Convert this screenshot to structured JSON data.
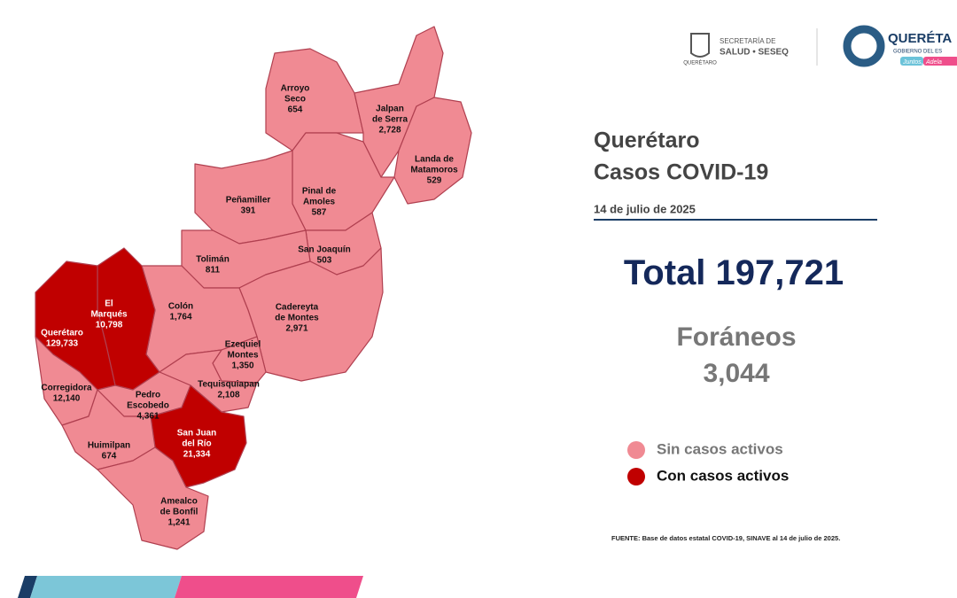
{
  "header": {
    "agency": [
      "SECRETARÍA DE",
      "SALUD • SESEQ"
    ],
    "crest_text": "QUERÉTARO",
    "brand": "QUERÉTA",
    "brand_sub": "GOBIERNO DEL ES",
    "tagline": [
      "Juntos,",
      "Adela"
    ]
  },
  "title": [
    "Querétaro",
    "Casos COVID-19"
  ],
  "date": "14 de julio de 2025",
  "total": {
    "label": "Total",
    "value": "197,721"
  },
  "foreign": {
    "label": "Foráneos",
    "value": "3,044"
  },
  "legend": [
    {
      "label": "Sin casos activos",
      "color": "#f08a93"
    },
    {
      "label": "Con casos activos",
      "color": "#c00000"
    }
  ],
  "municipalities": [
    {
      "name": [
        "Arroyo",
        "Seco"
      ],
      "cases": "654",
      "active": false
    },
    {
      "name": [
        "Jalpan",
        "de Serra"
      ],
      "cases": "2,728",
      "active": false
    },
    {
      "name": [
        "Landa de",
        "Matamoros"
      ],
      "cases": "529",
      "active": false
    },
    {
      "name": [
        "Pinal de",
        "Amoles"
      ],
      "cases": "587",
      "active": false
    },
    {
      "name": [
        "Peñamiller"
      ],
      "cases": "391",
      "active": false
    },
    {
      "name": [
        "San Joaquín"
      ],
      "cases": "503",
      "active": false
    },
    {
      "name": [
        "Tolimán"
      ],
      "cases": "811",
      "active": false
    },
    {
      "name": [
        "Cadereyta",
        "de Montes"
      ],
      "cases": "2,971",
      "active": false
    },
    {
      "name": [
        "Colón"
      ],
      "cases": "1,764",
      "active": false
    },
    {
      "name": [
        "Ezequiel",
        "Montes"
      ],
      "cases": "1,350",
      "active": false
    },
    {
      "name": [
        "Tequisquiapan"
      ],
      "cases": "2,108",
      "active": false
    },
    {
      "name": [
        "El",
        "Marqués"
      ],
      "cases": "10,798",
      "active": true
    },
    {
      "name": [
        "Querétaro"
      ],
      "cases": "129,733",
      "active": true
    },
    {
      "name": [
        "Corregidora"
      ],
      "cases": "12,140",
      "active": false
    },
    {
      "name": [
        "Pedro",
        "Escobedo"
      ],
      "cases": "4,361",
      "active": false
    },
    {
      "name": [
        "San Juan",
        "del Río"
      ],
      "cases": "21,334",
      "active": true
    },
    {
      "name": [
        "Huimilpan"
      ],
      "cases": "674",
      "active": false
    },
    {
      "name": [
        "Amealco",
        "de Bonfil"
      ],
      "cases": "1,241",
      "active": false
    }
  ],
  "source": "FUENTE: Base de datos estatal COVID-19, SINAVE al 14 de julio de 2025."
}
